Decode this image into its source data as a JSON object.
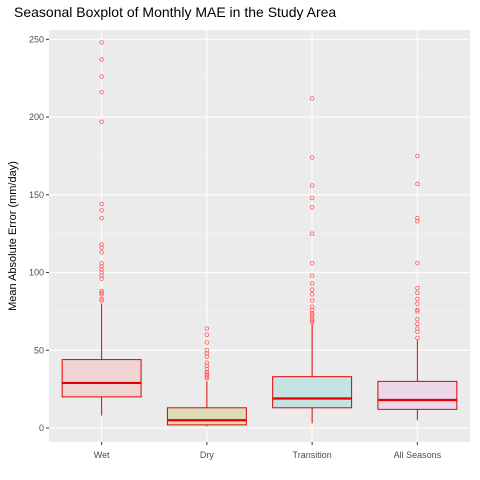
{
  "chart_data": {
    "type": "boxplot",
    "title": "Seasonal Boxplot of Monthly MAE in the Study Area",
    "xlabel": "",
    "ylabel": "Mean Absolute Error (mm/day)",
    "ylim": [
      -9,
      256
    ],
    "y_ticks": [
      0,
      50,
      100,
      150,
      200,
      250
    ],
    "grid": true,
    "categories": [
      "Wet",
      "Dry",
      "Transition",
      "All Seasons"
    ],
    "boxes": [
      {
        "name": "Wet",
        "fill": "#f0d4d4",
        "whisker_low": 8,
        "q1": 20,
        "median": 29,
        "q3": 44,
        "whisker_high": 80,
        "outliers": [
          248,
          237,
          226,
          216,
          197,
          144,
          140,
          135,
          118,
          116,
          113,
          106,
          104,
          102,
          100,
          98,
          96,
          88,
          87,
          86,
          83,
          82
        ]
      },
      {
        "name": "Dry",
        "fill": "#dcdcb8",
        "whisker_low": 1,
        "q1": 2,
        "median": 5,
        "q3": 13,
        "whisker_high": 30,
        "outliers": [
          64,
          60,
          55,
          50,
          48,
          46,
          42,
          40,
          38,
          36,
          35,
          34,
          33,
          32
        ]
      },
      {
        "name": "Transition",
        "fill": "#c4e4e4",
        "whisker_low": 3,
        "q1": 13,
        "median": 19,
        "q3": 33,
        "whisker_high": 67,
        "outliers": [
          212,
          174,
          156,
          148,
          142,
          125,
          106,
          98,
          93,
          89,
          86,
          82,
          78,
          76,
          74,
          73,
          72,
          70,
          69,
          68
        ]
      },
      {
        "name": "All Seasons",
        "fill": "#ead8ea",
        "whisker_low": 5,
        "q1": 12,
        "median": 18,
        "q3": 30,
        "whisker_high": 57,
        "outliers": [
          175,
          157,
          135,
          133,
          106,
          90,
          87,
          83,
          80,
          76,
          75,
          70,
          67,
          64,
          62,
          58
        ]
      }
    ],
    "colors": {
      "stroke": "#e00000",
      "outlier": "#ff6666",
      "panel_bg": "#ebebeb",
      "grid_major": "#ffffff",
      "grid_minor": "#f5f5f5"
    }
  }
}
